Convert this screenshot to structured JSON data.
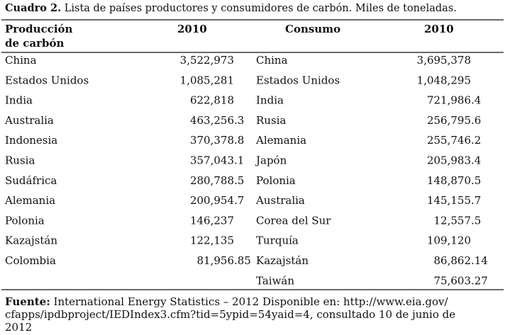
{
  "title": {
    "label": "Cuadro 2.",
    "text": "Lista de países productores y consumidores de carbón. Miles de toneladas."
  },
  "headers": {
    "produccion": [
      "Producción",
      "de carbón"
    ],
    "produccion_year": "2010",
    "consumo": "Consumo",
    "consumo_year": "2010"
  },
  "produccion": [
    {
      "pais": "China",
      "valor": "3,522,973"
    },
    {
      "pais": "Estados Unidos",
      "valor": "1,085,281"
    },
    {
      "pais": "India",
      "valor": "622,818"
    },
    {
      "pais": "Australia",
      "valor": "463,256.3"
    },
    {
      "pais": "Indonesia",
      "valor": "370,378.8"
    },
    {
      "pais": "Rusia",
      "valor": "357,043.1"
    },
    {
      "pais": "Sudáfrica",
      "valor": "280,788.5"
    },
    {
      "pais": "Alemania",
      "valor": "200,954.7"
    },
    {
      "pais": "Polonia",
      "valor": "146,237"
    },
    {
      "pais": "Kazajstán",
      "valor": "122,135"
    },
    {
      "pais": "Colombia",
      "valor": "81,956.85"
    }
  ],
  "consumo": [
    {
      "pais": "China",
      "valor": "3,695,378"
    },
    {
      "pais": "Estados Unidos",
      "valor": "1,048,295"
    },
    {
      "pais": "India",
      "valor": "721,986.4"
    },
    {
      "pais": "Rusia",
      "valor": "256,795.6"
    },
    {
      "pais": "Alemania",
      "valor": "255,746.2"
    },
    {
      "pais": "Japón",
      "valor": "205,983.4"
    },
    {
      "pais": "Polonia",
      "valor": "148,870.5"
    },
    {
      "pais": "Australia",
      "valor": "145,155.7"
    },
    {
      "pais": "Corea del Sur",
      "valor": "12,557.5"
    },
    {
      "pais": "Turquía",
      "valor": "109,120"
    },
    {
      "pais": "Kazajstán",
      "valor": "86,862.14"
    },
    {
      "pais": "Taiwán",
      "valor": "75,603.27"
    }
  ],
  "footer": {
    "label": "Fuente:",
    "lines": [
      "International Energy Statistics – 2012 Disponible en: http://www.eia.gov/",
      "cfapps/ipdbproject/IEDIndex3.cfm?tid=5ypid=54yaid=4, consultado 10 de junio de",
      "2012"
    ]
  }
}
